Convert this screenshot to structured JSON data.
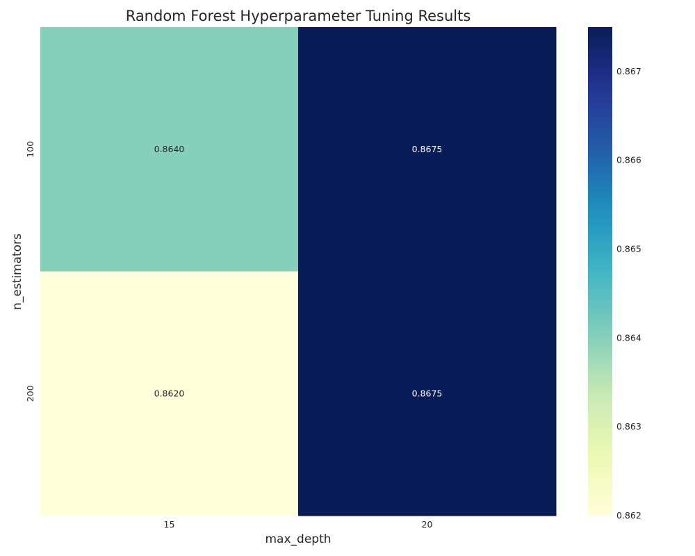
{
  "chart_data": {
    "type": "heatmap",
    "title": "Random Forest Hyperparameter Tuning Results",
    "xlabel": "max_depth",
    "ylabel": "n_estimators",
    "x_categories": [
      "15",
      "20"
    ],
    "y_categories": [
      "100",
      "200"
    ],
    "values": [
      [
        0.864,
        0.8675
      ],
      [
        0.862,
        0.8675
      ]
    ],
    "cell_labels": [
      [
        "0.8640",
        "0.8675"
      ],
      [
        "0.8620",
        "0.8675"
      ]
    ],
    "colormap": "YlGnBu",
    "vmin": 0.862,
    "vmax": 0.8675,
    "colorbar_ticks": [
      "0.867",
      "0.866",
      "0.865",
      "0.864",
      "0.863",
      "0.862"
    ],
    "colorbar_tick_values": [
      0.867,
      0.866,
      0.865,
      0.864,
      0.863,
      0.862
    ],
    "legend": "right"
  }
}
